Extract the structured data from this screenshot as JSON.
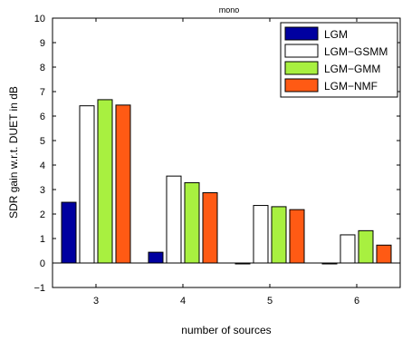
{
  "chart_data": {
    "type": "bar",
    "title": "mono",
    "xlabel": "number of sources",
    "ylabel": "SDR gain w.r.t. DUET in dB",
    "categories": [
      "3",
      "4",
      "5",
      "6"
    ],
    "ylim": [
      -1,
      10
    ],
    "yticks": [
      -1,
      0,
      1,
      2,
      3,
      4,
      5,
      6,
      7,
      8,
      9,
      10
    ],
    "grid": false,
    "legend_position": "top-right",
    "series": [
      {
        "name": "LGM",
        "color": "#0000a0",
        "values": [
          2.48,
          0.44,
          0.0,
          0.0
        ]
      },
      {
        "name": "LGM−GSMM",
        "color": "#ffffff",
        "values": [
          6.42,
          3.55,
          2.35,
          1.15
        ]
      },
      {
        "name": "LGM−GMM",
        "color": "#a8f040",
        "values": [
          6.67,
          3.28,
          2.3,
          1.32
        ]
      },
      {
        "name": "LGM−NMF",
        "color": "#ff5a14",
        "values": [
          6.45,
          2.87,
          2.18,
          0.73
        ]
      }
    ]
  }
}
